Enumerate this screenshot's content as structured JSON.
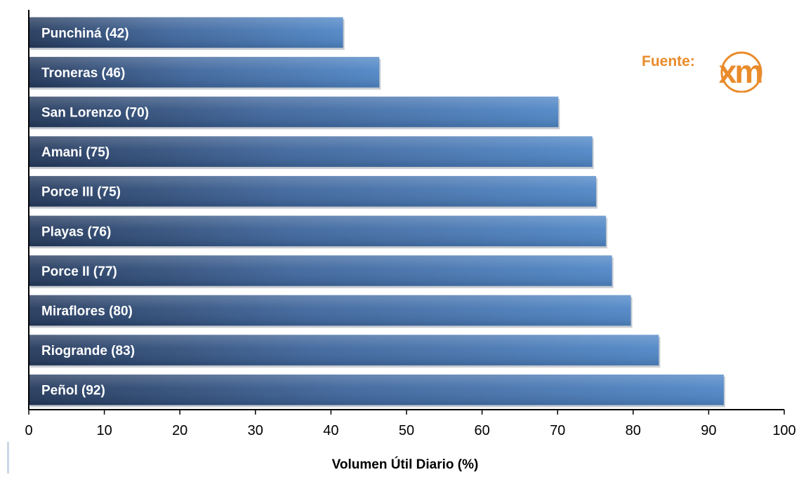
{
  "chart_data": {
    "type": "bar",
    "orientation": "horizontal",
    "categories": [
      "Punchiná (42)",
      "Troneras (46)",
      "San Lorenzo (70)",
      "Amani (75)",
      "Porce III (75)",
      "Playas (76)",
      "Porce II (77)",
      "Miraflores (80)",
      "Riogrande (83)",
      "Peñol (92)"
    ],
    "values": [
      41.6,
      46.4,
      70.1,
      74.6,
      75.1,
      76.4,
      77.2,
      79.7,
      83.4,
      92.0
    ],
    "xlabel": "Volumen Útil Diario (%)",
    "ylabel": "",
    "xlim": [
      0,
      100
    ],
    "xticks": [
      "0",
      "10",
      "20",
      "30",
      "40",
      "50",
      "60",
      "70",
      "80",
      "90",
      "100"
    ],
    "grid": false,
    "bar_gradient": [
      "#24395c",
      "#3e659b",
      "#4f86c6"
    ]
  },
  "source": {
    "label": "Fuente:",
    "logo_text": "xm",
    "logo_color": "#e98b2a"
  }
}
